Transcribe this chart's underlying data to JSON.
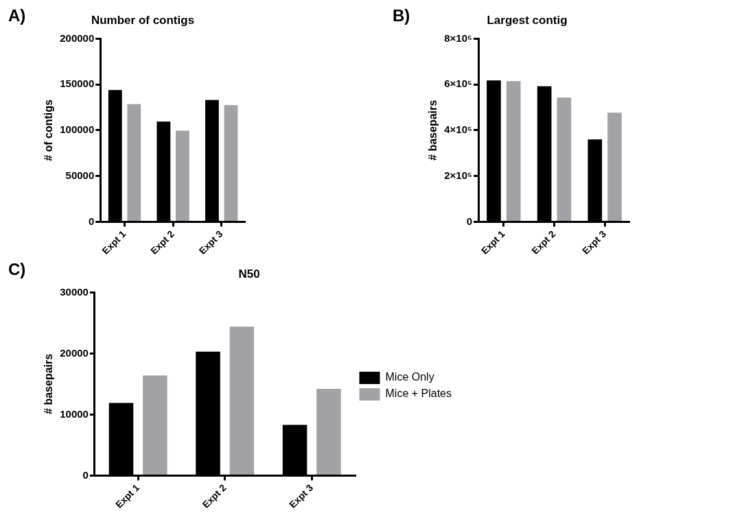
{
  "chart_data": [
    {
      "type": "bar",
      "title": "Number of contigs",
      "ylabel": "# of contigs",
      "annotations": [
        "A)"
      ],
      "categories": [
        "Expt 1",
        "Expt 2",
        "Expt 3"
      ],
      "series": [
        {
          "color": "#000000",
          "values": [
            144000,
            109500,
            133000
          ]
        },
        {
          "color": "#a2a2a6",
          "values": [
            128500,
            99500,
            127500
          ]
        }
      ],
      "ylim": [
        0,
        200000
      ],
      "yticks": [
        0,
        50000,
        100000,
        150000,
        200000
      ],
      "grid": false,
      "legend": false
    },
    {
      "type": "bar",
      "title": "Largest contig",
      "ylabel": "# basepairs",
      "annotations": [
        "B)"
      ],
      "categories": [
        "Expt 1",
        "Expt 2",
        "Expt 3"
      ],
      "series": [
        {
          "color": "#000000",
          "values": [
            618000,
            592000,
            360000
          ]
        },
        {
          "color": "#a2a2a6",
          "values": [
            615000,
            543000,
            477000
          ]
        }
      ],
      "ylim": [
        0,
        800000
      ],
      "yticks": [
        0,
        {
          "value": 200000,
          "label": "2×10⁵"
        },
        {
          "value": 400000,
          "label": "4×10⁵"
        },
        {
          "value": 600000,
          "label": "6×10⁵"
        },
        {
          "value": 800000,
          "label": "8×10⁵"
        }
      ],
      "grid": false,
      "legend": false
    },
    {
      "type": "bar",
      "title": "N50",
      "ylabel": "# basepairs",
      "annotations": [
        "C)"
      ],
      "categories": [
        "Expt 1",
        "Expt 2",
        "Expt 3"
      ],
      "series": [
        {
          "name": "Mice Only",
          "color": "#000000",
          "values": [
            11900,
            20300,
            8300
          ]
        },
        {
          "name": "Mice + Plates",
          "color": "#a2a2a6",
          "values": [
            16400,
            24400,
            14200
          ]
        }
      ],
      "ylim": [
        0,
        30000
      ],
      "yticks": [
        0,
        10000,
        20000,
        30000
      ],
      "grid": false,
      "legend": "right"
    }
  ]
}
